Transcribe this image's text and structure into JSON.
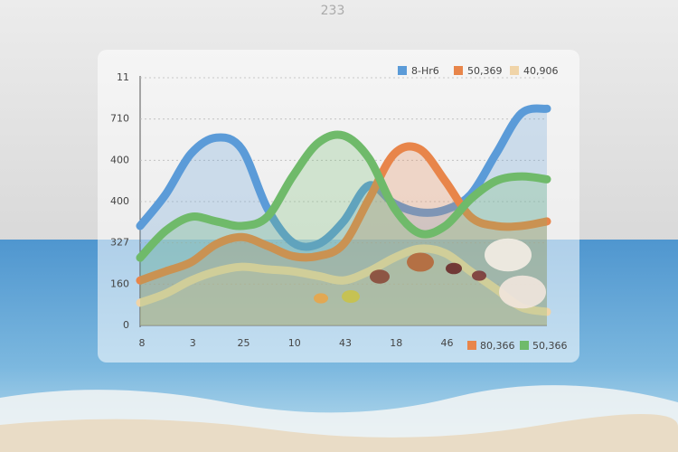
{
  "chart_data": {
    "type": "area",
    "title": "233",
    "x": [
      0,
      0.5,
      1,
      1.5,
      2,
      2.5,
      3,
      3.5,
      4,
      4.5,
      5,
      5.5,
      6,
      6.5,
      7,
      7.5,
      8
    ],
    "xlim": [
      0,
      8
    ],
    "xticks": [
      {
        "value": 0,
        "label": "8"
      },
      {
        "value": 1,
        "label": "3"
      },
      {
        "value": 2,
        "label": "25"
      },
      {
        "value": 3,
        "label": "10"
      },
      {
        "value": 4,
        "label": "43"
      },
      {
        "value": 5,
        "label": "18"
      },
      {
        "value": 6,
        "label": "46"
      }
    ],
    "ylim": [
      0,
      6
    ],
    "yticks": [
      0,
      {
        "value": 1,
        "label": "160"
      },
      {
        "value": 2,
        "label": "327"
      },
      {
        "value": 3,
        "label": "400"
      },
      {
        "value": 4,
        "label": "400"
      },
      {
        "value": 5,
        "label": "710"
      },
      {
        "value": 6,
        "label": "11"
      }
    ],
    "grid": true,
    "series": [
      {
        "name": "8-Hr6",
        "color": "#5b9bd8",
        "legend": "top",
        "values": [
          2.41,
          3.17,
          4.16,
          4.55,
          4.27,
          2.84,
          2.01,
          1.97,
          2.52,
          3.39,
          2.95,
          2.74,
          2.8,
          3.17,
          4.16,
          5.14,
          5.25
        ]
      },
      {
        "name": "50,369",
        "color": "#e8854a",
        "legend": "top",
        "values": [
          1.09,
          1.31,
          1.53,
          1.97,
          2.14,
          1.93,
          1.68,
          1.68,
          1.97,
          3.06,
          4.16,
          4.27,
          3.5,
          2.63,
          2.41,
          2.41,
          2.52
        ]
      },
      {
        "name": "40,906",
        "color": "#f0d4a8",
        "legend": "top",
        "values": [
          0.55,
          0.77,
          1.09,
          1.31,
          1.42,
          1.36,
          1.31,
          1.2,
          1.09,
          1.31,
          1.64,
          1.86,
          1.75,
          1.31,
          0.88,
          0.44,
          0.33
        ]
      },
      {
        "name": "50,366",
        "color": "#6fba6a",
        "legend": "bottom",
        "values": [
          1.64,
          2.29,
          2.63,
          2.52,
          2.41,
          2.63,
          3.61,
          4.42,
          4.6,
          4.05,
          2.84,
          2.23,
          2.41,
          3.06,
          3.5,
          3.61,
          3.54
        ]
      }
    ],
    "extra_legend": {
      "label": "80,366",
      "color": "#e8854a"
    }
  }
}
